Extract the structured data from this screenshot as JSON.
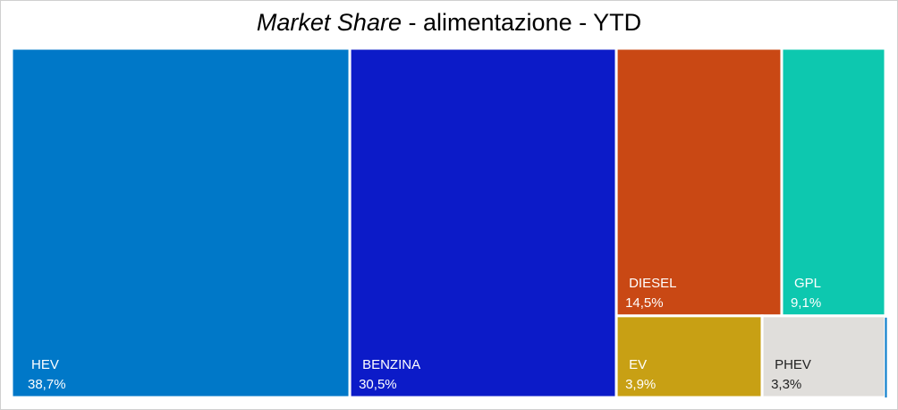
{
  "title_italic": "Market Share",
  "title_rest": " - alimentazione - YTD",
  "chart_data": {
    "type": "treemap",
    "title": "Market Share - alimentazione - YTD",
    "unit": "%",
    "items": [
      {
        "name": "HEV",
        "value": 38.7,
        "value_label": "38,7%",
        "color": "#0078C8",
        "text_color": "#ffffff"
      },
      {
        "name": "BENZINA",
        "value": 30.5,
        "value_label": "30,5%",
        "color": "#0C1BC8",
        "text_color": "#ffffff"
      },
      {
        "name": "DIESEL",
        "value": 14.5,
        "value_label": "14,5%",
        "color": "#C94814",
        "text_color": "#ffffff"
      },
      {
        "name": "GPL",
        "value": 9.1,
        "value_label": "9,1%",
        "color": "#0DC8AF",
        "text_color": "#ffffff"
      },
      {
        "name": "EV",
        "value": 3.9,
        "value_label": "3,9%",
        "color": "#C8A014",
        "text_color": "#ffffff"
      },
      {
        "name": "PHEV",
        "value": 3.3,
        "value_label": "3,3%",
        "color": "#E0DEDB",
        "text_color": "#222222"
      }
    ]
  }
}
